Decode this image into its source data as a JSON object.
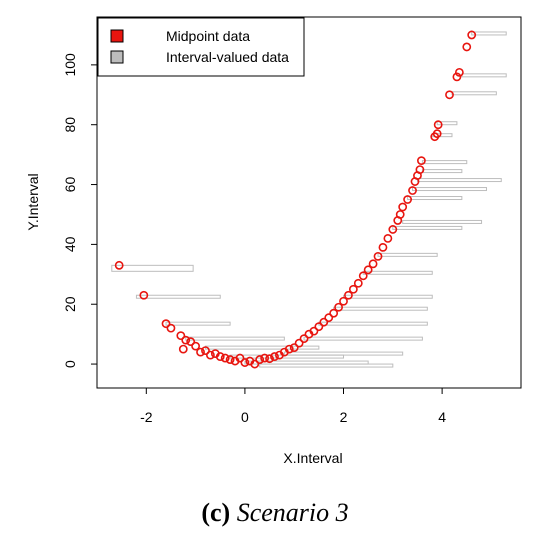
{
  "chart_data": {
    "type": "scatter",
    "xlabel": "X.Interval",
    "ylabel": "Y.Interval",
    "xlim": [
      -3,
      5.6
    ],
    "ylim": [
      -8,
      116
    ],
    "xticks": [
      -2,
      0,
      2,
      4
    ],
    "yticks": [
      0,
      20,
      40,
      60,
      80,
      100
    ],
    "legend": {
      "placement": "top-left"
    },
    "series": [
      {
        "name": "Midpoint data",
        "color": "#e8150f",
        "points": [
          [
            -2.55,
            33
          ],
          [
            -2.05,
            23
          ],
          [
            -1.6,
            13.5
          ],
          [
            -1.5,
            12
          ],
          [
            -1.3,
            9.5
          ],
          [
            -1.2,
            8
          ],
          [
            -1.1,
            7.5
          ],
          [
            -1.25,
            5
          ],
          [
            -1.0,
            6
          ],
          [
            -0.9,
            4
          ],
          [
            -0.8,
            4.5
          ],
          [
            -0.7,
            3
          ],
          [
            -0.6,
            3.5
          ],
          [
            -0.5,
            2.5
          ],
          [
            -0.4,
            2
          ],
          [
            -0.3,
            1.5
          ],
          [
            -0.2,
            1
          ],
          [
            -0.1,
            2
          ],
          [
            0,
            0.5
          ],
          [
            0.1,
            1
          ],
          [
            0.2,
            0
          ],
          [
            0.3,
            1.5
          ],
          [
            0.4,
            2
          ],
          [
            0.5,
            1.8
          ],
          [
            0.6,
            2.5
          ],
          [
            0.7,
            3
          ],
          [
            0.8,
            4
          ],
          [
            0.9,
            5
          ],
          [
            1.0,
            5.5
          ],
          [
            1.1,
            7
          ],
          [
            1.2,
            8.5
          ],
          [
            1.3,
            10
          ],
          [
            1.4,
            11
          ],
          [
            1.5,
            12.5
          ],
          [
            1.6,
            14
          ],
          [
            1.7,
            15.5
          ],
          [
            1.8,
            17
          ],
          [
            1.9,
            19
          ],
          [
            2.0,
            21
          ],
          [
            2.1,
            23
          ],
          [
            2.2,
            25
          ],
          [
            2.3,
            27
          ],
          [
            2.4,
            29.5
          ],
          [
            2.5,
            31.5
          ],
          [
            2.6,
            33.5
          ],
          [
            2.7,
            36
          ],
          [
            2.8,
            39
          ],
          [
            2.9,
            42
          ],
          [
            3.0,
            45
          ],
          [
            3.1,
            48
          ],
          [
            3.15,
            50
          ],
          [
            3.2,
            52.5
          ],
          [
            3.3,
            55
          ],
          [
            3.4,
            58
          ],
          [
            3.45,
            61
          ],
          [
            3.5,
            63
          ],
          [
            3.55,
            65
          ],
          [
            3.58,
            68
          ],
          [
            3.85,
            76
          ],
          [
            3.9,
            77
          ],
          [
            3.92,
            80
          ],
          [
            4.15,
            90
          ],
          [
            4.3,
            96
          ],
          [
            4.35,
            97.5
          ],
          [
            4.5,
            106
          ],
          [
            4.6,
            110
          ]
        ]
      },
      {
        "name": "Interval-valued data",
        "color": "#bdbdbd",
        "intervals": [
          [
            -2.7,
            -1.05,
            31,
            33
          ],
          [
            -2.2,
            -0.5,
            22,
            23
          ],
          [
            -1.6,
            -0.3,
            13,
            14
          ],
          [
            -1.2,
            0.8,
            8,
            9
          ],
          [
            -0.8,
            1.5,
            5,
            6
          ],
          [
            -0.3,
            2.0,
            2,
            3
          ],
          [
            0,
            2.5,
            0,
            1
          ],
          [
            0.3,
            3.0,
            -1,
            0
          ],
          [
            0.8,
            3.2,
            3,
            4
          ],
          [
            1.2,
            3.6,
            8,
            9
          ],
          [
            1.5,
            3.7,
            13,
            14
          ],
          [
            1.8,
            3.7,
            18,
            19
          ],
          [
            2.0,
            3.8,
            22,
            23
          ],
          [
            2.4,
            3.8,
            30,
            31
          ],
          [
            2.7,
            3.9,
            36,
            37
          ],
          [
            3.0,
            4.4,
            45,
            46
          ],
          [
            3.2,
            4.8,
            47,
            48
          ],
          [
            3.3,
            4.4,
            55,
            56
          ],
          [
            3.4,
            4.9,
            58,
            59
          ],
          [
            3.5,
            5.2,
            61,
            62
          ],
          [
            3.6,
            4.4,
            64,
            65
          ],
          [
            3.6,
            4.5,
            67,
            68
          ],
          [
            3.8,
            4.2,
            76,
            77
          ],
          [
            3.9,
            4.3,
            80,
            81
          ],
          [
            4.2,
            5.1,
            90,
            91
          ],
          [
            4.4,
            5.3,
            96,
            97
          ],
          [
            4.6,
            5.3,
            110,
            111
          ]
        ]
      }
    ]
  },
  "caption": {
    "label": "(c)",
    "text": "Scenario 3"
  }
}
